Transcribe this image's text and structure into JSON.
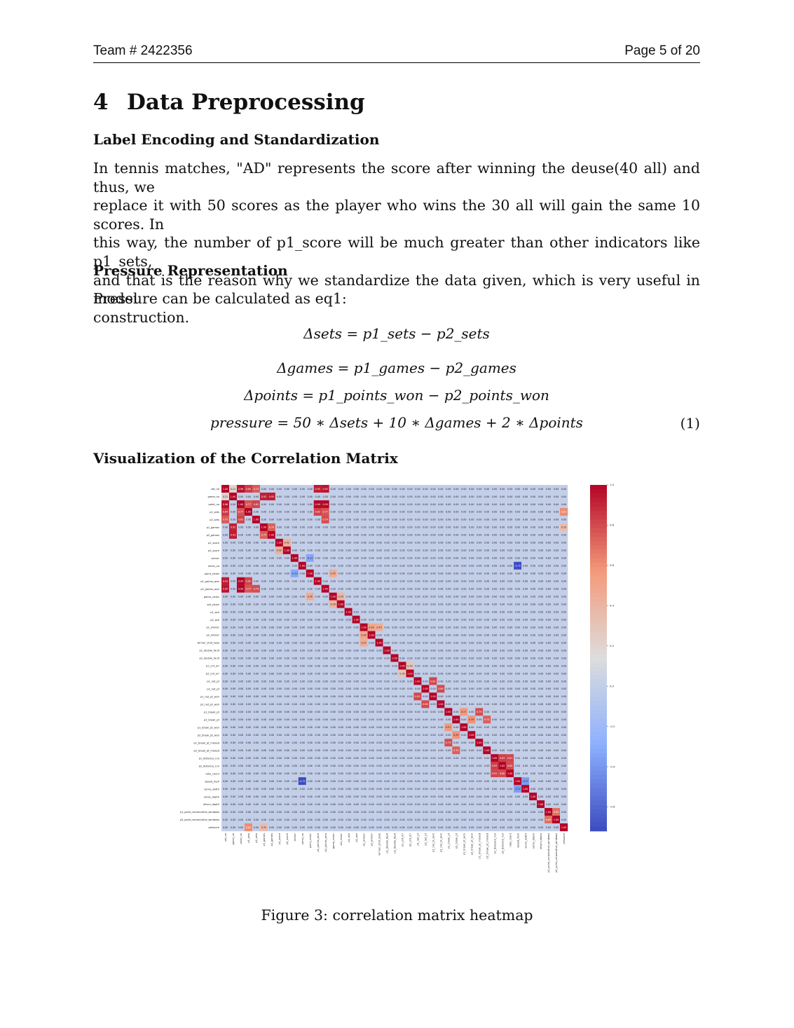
{
  "header": {
    "left": "Team # 2422356",
    "right": "Page 5 of 20"
  },
  "section": {
    "number": "4",
    "title": "Data Preprocessing"
  },
  "subsection1": {
    "title": "Label Encoding and Standardization",
    "lines": [
      "In tennis matches, \"AD\" represents the score after winning the deuse(40 all) and thus, we",
      "replace it with 50 scores as the player who wins the 30 all will gain the same 10 scores. In",
      "this way, the number of p1_score will be much greater than other indicators like p1_sets,",
      "and that is the reason why we standardize the data given, which is very useful in model",
      "construction."
    ]
  },
  "subsection2": {
    "title": "Pressure Representation",
    "text": "Pressure can be calculated as eq1:"
  },
  "equations": {
    "sets": "Δsets = p1_sets − p2_sets",
    "games": "Δgames = p1_games − p2_games",
    "points": "Δpoints = p1_points_won − p2_points_won",
    "pressure": "pressure = 50 ∗ Δsets + 10 ∗ Δgames + 2 ∗ Δpoints",
    "number": "(1)"
  },
  "subsection3": {
    "title": "Visualization of the Correlation Matrix"
  },
  "figure": {
    "caption": "Figure 3: correlation matrix heatmap"
  },
  "chart_data": {
    "type": "heatmap",
    "title": "",
    "variables": [
      "set_no",
      "game_no",
      "point_no",
      "p1_sets",
      "p2_sets",
      "p1_games",
      "p2_games",
      "p1_score",
      "p2_score",
      "server",
      "serve_no",
      "point_victor",
      "p1_points_won",
      "p2_points_won",
      "game_victor",
      "set_victor",
      "p1_ace",
      "p2_ace",
      "p1_winner",
      "p2_winner",
      "winner_shot_type",
      "p1_double_fault",
      "p2_double_fault",
      "p1_unf_err",
      "p2_unf_err",
      "p1_net_pt",
      "p2_net_pt",
      "p1_net_pt_won",
      "p2_net_pt_won",
      "p1_break_pt",
      "p2_break_pt",
      "p1_break_pt_won",
      "p2_break_pt_won",
      "p1_break_pt_missed",
      "p2_break_pt_missed",
      "p1_distance_run",
      "p2_distance_run",
      "rally_count",
      "speed_mph",
      "serve_width",
      "serve_depth",
      "return_depth",
      "p1_point_consecutive_windows",
      "p2_point_consecutive_windows",
      "pressure"
    ],
    "diagonal": 1.0,
    "strong_correlations": [
      {
        "a": "set_no",
        "b": "game_no",
        "value": 0.21
      },
      {
        "a": "set_no",
        "b": "point_no",
        "value": 0.96
      },
      {
        "a": "set_no",
        "b": "p1_sets",
        "value": 0.84
      },
      {
        "a": "set_no",
        "b": "p2_sets",
        "value": 0.75
      },
      {
        "a": "set_no",
        "b": "p1_points_won",
        "value": 0.93
      },
      {
        "a": "set_no",
        "b": "p2_points_won",
        "value": 0.95
      },
      {
        "a": "point_no",
        "b": "p1_points_won",
        "value": 0.99
      },
      {
        "a": "point_no",
        "b": "p2_points_won",
        "value": 0.99
      },
      {
        "a": "point_no",
        "b": "p1_sets",
        "value": 0.77
      },
      {
        "a": "point_no",
        "b": "p2_sets",
        "value": 0.82
      },
      {
        "a": "p1_sets",
        "b": "p1_points_won",
        "value": 0.82
      },
      {
        "a": "p1_sets",
        "b": "p2_points_won",
        "value": 0.77
      },
      {
        "a": "p2_sets",
        "b": "p2_points_won",
        "value": 0.79
      },
      {
        "a": "game_no",
        "b": "p1_games",
        "value": 0.92
      },
      {
        "a": "game_no",
        "b": "p2_games",
        "value": 0.93
      },
      {
        "a": "p1_games",
        "b": "p2_games",
        "value": 0.74
      },
      {
        "a": "p1_score",
        "b": "p2_score",
        "value": 0.42
      },
      {
        "a": "server",
        "b": "point_victor",
        "value": -0.33
      },
      {
        "a": "point_victor",
        "b": "game_victor",
        "value": 0.45
      },
      {
        "a": "game_victor",
        "b": "set_victor",
        "value": 0.39
      },
      {
        "a": "p1_ace",
        "b": "p2_ace",
        "value": -0.02
      },
      {
        "a": "p1_winner",
        "b": "p2_winner",
        "value": 0.49
      },
      {
        "a": "winner_shot_type",
        "b": "p1_winner",
        "value": 0.45
      },
      {
        "a": "p1_unf_err",
        "b": "p2_unf_err",
        "value": 0.3
      },
      {
        "a": "p1_net_pt",
        "b": "p1_net_pt_won",
        "value": 0.81
      },
      {
        "a": "p2_net_pt",
        "b": "p2_net_pt_won",
        "value": 0.8
      },
      {
        "a": "p1_break_pt",
        "b": "p1_break_pt_won",
        "value": 0.57
      },
      {
        "a": "p2_break_pt",
        "b": "p2_break_pt_won",
        "value": 0.59
      },
      {
        "a": "p1_break_pt",
        "b": "p1_break_pt_missed",
        "value": 0.79
      },
      {
        "a": "p2_break_pt",
        "b": "p2_break_pt_missed",
        "value": 0.74
      },
      {
        "a": "p1_distance_run",
        "b": "p2_distance_run",
        "value": 0.83
      },
      {
        "a": "p1_distance_run",
        "b": "rally_count",
        "value": 0.81
      },
      {
        "a": "p2_distance_run",
        "b": "rally_count",
        "value": 0.8
      },
      {
        "a": "serve_no",
        "b": "speed_mph",
        "value": -0.72
      },
      {
        "a": "serve_width",
        "b": "speed_mph",
        "value": -0.37
      },
      {
        "a": "p1_point_consecutive_windows",
        "b": "p2_point_consecutive_windows",
        "value": 0.69
      },
      {
        "a": "pressure",
        "b": "p1_sets",
        "value": 0.61
      },
      {
        "a": "pressure",
        "b": "p1_games",
        "value": 0.35
      }
    ],
    "background_value": 0.0,
    "colormap": "coolwarm",
    "colorbar_ticks": [
      1.0,
      0.8,
      0.6,
      0.4,
      0.2,
      0.0,
      -0.2,
      -0.4,
      -0.6
    ],
    "vmin": -0.72,
    "vmax": 1.0
  }
}
